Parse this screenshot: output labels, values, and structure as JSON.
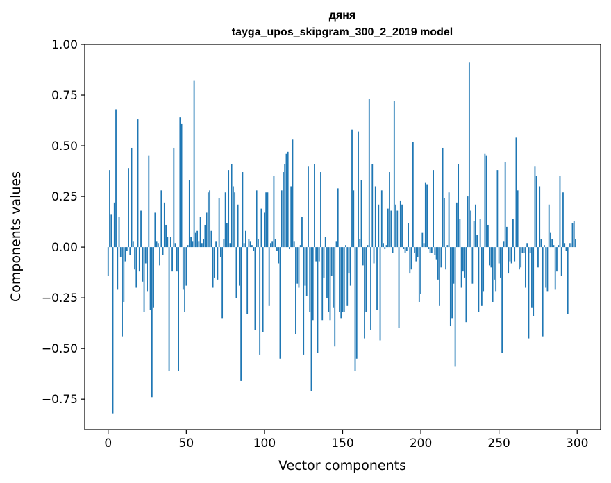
{
  "chart_data": {
    "type": "bar",
    "title": "дяня",
    "subtitle": "tayga_upos_skipgram_300_2_2019 model",
    "xlabel": "Vector components",
    "ylabel": "Components values",
    "xlim": [
      -15,
      315
    ],
    "ylim": [
      -0.9,
      1.0
    ],
    "x_ticks": [
      0,
      50,
      100,
      150,
      200,
      250,
      300
    ],
    "x_tick_labels": [
      "0",
      "50",
      "100",
      "150",
      "200",
      "250",
      "300"
    ],
    "y_ticks": [
      -0.75,
      -0.5,
      -0.25,
      0.0,
      0.25,
      0.5,
      0.75,
      1.0
    ],
    "y_tick_labels": [
      "−0.75",
      "−0.50",
      "−0.25",
      "0.00",
      "0.25",
      "0.50",
      "0.75",
      "1.00"
    ],
    "bar_color": "#1f77b4",
    "grid": false,
    "values": [
      -0.14,
      0.38,
      0.16,
      -0.82,
      0.22,
      0.68,
      -0.21,
      0.15,
      -0.05,
      -0.44,
      -0.27,
      -0.07,
      -0.02,
      0.39,
      -0.04,
      0.49,
      0.03,
      -0.11,
      -0.2,
      0.63,
      -0.12,
      0.18,
      -0.17,
      -0.32,
      -0.08,
      -0.22,
      0.45,
      -0.31,
      -0.74,
      -0.3,
      0.17,
      0.03,
      0.02,
      -0.09,
      0.28,
      -0.04,
      0.22,
      0.11,
      0.05,
      -0.61,
      0.05,
      -0.12,
      0.49,
      0.02,
      -0.12,
      -0.61,
      0.64,
      0.61,
      -0.21,
      -0.32,
      -0.19,
      0.01,
      0.33,
      0.05,
      0.03,
      0.82,
      0.07,
      0.08,
      0.03,
      0.15,
      0.02,
      0.04,
      0.11,
      0.17,
      0.27,
      0.28,
      0.08,
      -0.2,
      -0.15,
      0.03,
      -0.16,
      0.24,
      -0.05,
      -0.35,
      0.04,
      0.27,
      0.12,
      0.38,
      0.02,
      0.41,
      0.3,
      0.27,
      -0.25,
      0.21,
      -0.19,
      -0.66,
      0.37,
      0.02,
      0.08,
      -0.33,
      0.04,
      0.03,
      0.01,
      -0.02,
      -0.41,
      0.28,
      0.04,
      -0.53,
      0.19,
      -0.42,
      0.17,
      0.27,
      0.27,
      -0.29,
      0.02,
      0.03,
      0.35,
      0.04,
      -0.02,
      -0.08,
      -0.55,
      0.28,
      0.37,
      0.41,
      0.46,
      0.47,
      -0.01,
      0.3,
      0.53,
      0.03,
      -0.43,
      -0.18,
      -0.2,
      0.01,
      0.15,
      -0.53,
      -0.19,
      -0.24,
      0.4,
      -0.32,
      -0.71,
      -0.36,
      0.41,
      -0.07,
      -0.52,
      -0.07,
      0.37,
      -0.36,
      -0.15,
      0.05,
      -0.25,
      -0.32,
      -0.36,
      -0.14,
      -0.3,
      -0.49,
      0.03,
      0.29,
      -0.32,
      -0.35,
      -0.32,
      -0.32,
      0.01,
      -0.29,
      -0.13,
      -0.19,
      0.58,
      0.28,
      -0.61,
      -0.55,
      0.57,
      0.04,
      0.33,
      -0.09,
      -0.45,
      -0.32,
      0.01,
      0.73,
      -0.41,
      0.41,
      -0.08,
      0.3,
      -0.31,
      0.21,
      -0.46,
      0.28,
      0.02,
      -0.01,
      0.01,
      0.19,
      0.37,
      0.18,
      -0.03,
      0.72,
      0.21,
      0.18,
      -0.4,
      0.23,
      0.21,
      -0.01,
      -0.03,
      -0.02,
      0.12,
      -0.13,
      -0.11,
      0.52,
      -0.03,
      -0.07,
      -0.05,
      -0.27,
      -0.23,
      0.07,
      0.02,
      0.32,
      0.31,
      -0.01,
      -0.03,
      -0.03,
      0.38,
      -0.04,
      -0.06,
      -0.16,
      -0.29,
      -0.1,
      0.49,
      0.24,
      -0.11,
      0.01,
      0.27,
      -0.39,
      -0.35,
      -0.18,
      -0.59,
      0.22,
      0.41,
      0.14,
      -0.2,
      -0.12,
      -0.15,
      -0.37,
      0.25,
      0.91,
      0.18,
      -0.18,
      0.13,
      0.21,
      0.06,
      -0.32,
      0.14,
      -0.29,
      -0.22,
      0.46,
      0.45,
      0.11,
      -0.09,
      -0.1,
      -0.27,
      -0.16,
      -0.22,
      0.38,
      -0.08,
      -0.15,
      -0.52,
      0.03,
      0.42,
      0.1,
      -0.13,
      -0.07,
      -0.08,
      0.14,
      -0.07,
      0.54,
      0.28,
      -0.11,
      -0.1,
      -0.03,
      -0.03,
      -0.2,
      0.02,
      -0.45,
      -0.03,
      -0.3,
      -0.34,
      0.4,
      0.35,
      -0.1,
      0.3,
      0.04,
      -0.44,
      0.01,
      -0.2,
      -0.22,
      0.21,
      0.07,
      0.04,
      0.01,
      -0.21,
      -0.12,
      0.01,
      0.35,
      -0.14,
      0.27,
      0.02,
      -0.02,
      -0.33,
      0.02,
      0.02,
      0.12,
      0.13,
      0.04
    ]
  }
}
